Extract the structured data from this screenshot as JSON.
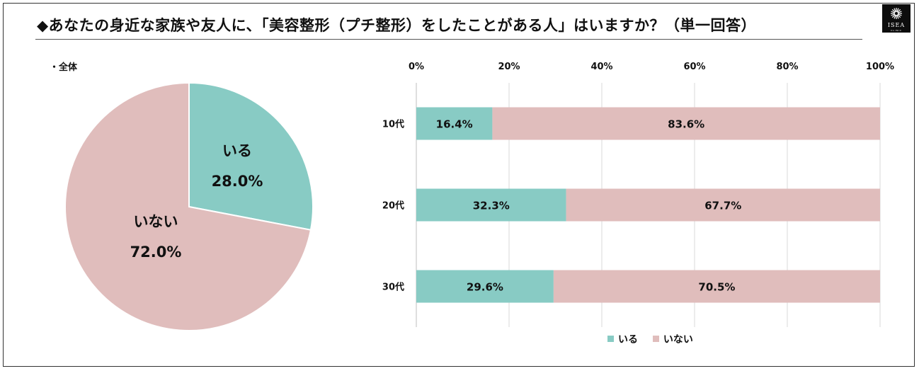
{
  "title": "◆あなたの身近な家族や友人に、「美容整形（プチ整形）をしたことがある人」はいますか？（単一回答）",
  "logo": {
    "text": "ISEA",
    "sub": "CLINIC"
  },
  "colors": {
    "yes": "#88cbc4",
    "no": "#e0bdbc",
    "grid": "#d9d9d9"
  },
  "chart_data": [
    {
      "type": "pie",
      "subset_label": "・全体",
      "slices": [
        {
          "name": "いる",
          "value": 28.0,
          "label": "28.0%"
        },
        {
          "name": "いない",
          "value": 72.0,
          "label": "72.0%"
        }
      ]
    },
    {
      "type": "bar",
      "orientation": "horizontal",
      "stacked": true,
      "categories": [
        "10代",
        "20代",
        "30代"
      ],
      "x_ticks": [
        "0%",
        "20%",
        "40%",
        "60%",
        "80%",
        "100%"
      ],
      "xlim": [
        0,
        100
      ],
      "grid": true,
      "legend_position": "bottom",
      "series": [
        {
          "name": "いる",
          "values": [
            16.4,
            32.3,
            29.6
          ],
          "labels": [
            "16.4%",
            "32.3%",
            "29.6%"
          ]
        },
        {
          "name": "いない",
          "values": [
            83.6,
            67.7,
            70.5
          ],
          "labels": [
            "83.6%",
            "67.7%",
            "70.5%"
          ]
        }
      ]
    }
  ]
}
